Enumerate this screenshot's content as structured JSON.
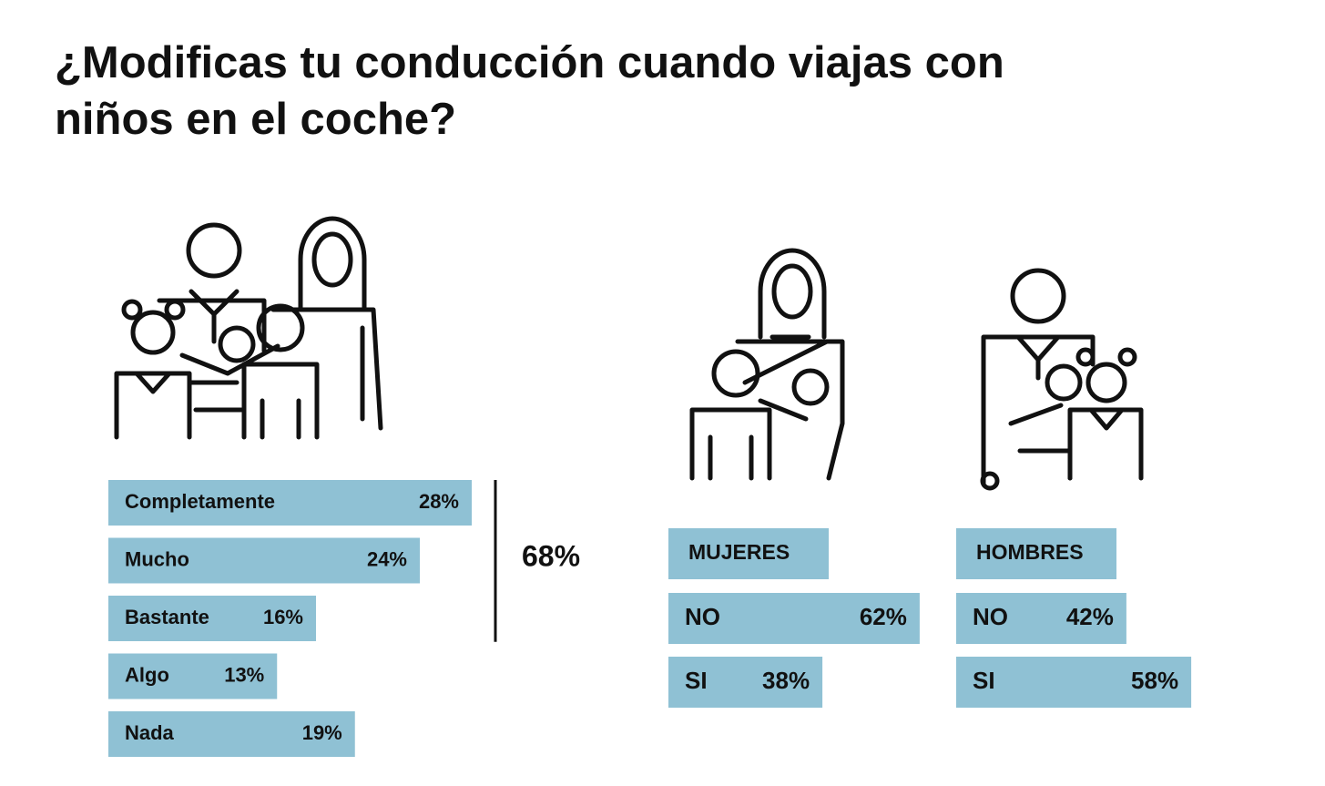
{
  "chart_data": [
    {
      "type": "bar",
      "title": "¿Modificas tu conducción cuando viajas con niños en el coche?",
      "categories": [
        "Completamente",
        "Mucho",
        "Bastante",
        "Algo",
        "Nada"
      ],
      "values": [
        28,
        24,
        16,
        13,
        19
      ],
      "value_labels": [
        "28%",
        "24%",
        "16%",
        "13%",
        "19%"
      ],
      "color": "#8fc1d4",
      "annotation": {
        "value": 68,
        "label": "68%"
      }
    },
    {
      "type": "bar",
      "title": "MUJERES",
      "categories": [
        "NO",
        "SI"
      ],
      "values": [
        62,
        38
      ],
      "value_labels": [
        "62%",
        "38%"
      ],
      "color": "#8fc1d4"
    },
    {
      "type": "bar",
      "title": "HOMBRES",
      "categories": [
        "NO",
        "SI"
      ],
      "values": [
        42,
        58
      ],
      "value_labels": [
        "42%",
        "58%"
      ],
      "color": "#8fc1d4"
    }
  ]
}
